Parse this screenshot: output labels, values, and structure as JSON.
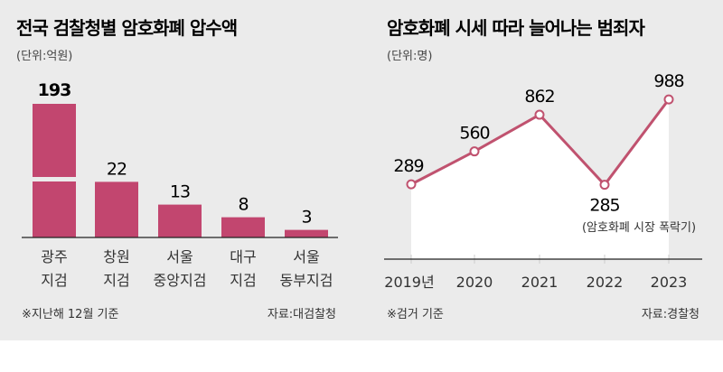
{
  "colors": {
    "bar": "#c2466f",
    "line": "#c0526f",
    "background": "#ebebeb",
    "area": "#ffffff"
  },
  "chart_data": [
    {
      "type": "bar",
      "title": "전국 검찰청별 암호화폐 압수액",
      "unit": "(단위:억원)",
      "categories": [
        [
          "광주",
          "지검"
        ],
        [
          "창원",
          "지검"
        ],
        [
          "서울",
          "중앙지검"
        ],
        [
          "대구",
          "지검"
        ],
        [
          "서울",
          "동부지검"
        ]
      ],
      "values": [
        193,
        22,
        13,
        8,
        3
      ],
      "value_labels": [
        "193",
        "22",
        "13",
        "8",
        "3"
      ],
      "axis_break_on_first_bar": true,
      "footnote": "※지난해 12월 기준",
      "source": "자료:대검찰청"
    },
    {
      "type": "line",
      "title": "암호화폐 시세 따라 늘어나는 범죄자",
      "unit": "(단위:명)",
      "x": [
        "2019년",
        "2020",
        "2021",
        "2022",
        "2023"
      ],
      "values": [
        289,
        560,
        862,
        285,
        988
      ],
      "value_labels": [
        "289",
        "560",
        "862",
        "285",
        "988"
      ],
      "annotation": "(암호화폐 시장 폭락기)",
      "annotation_for": "2022",
      "footnote": "※검거 기준",
      "source": "자료:경찰청"
    }
  ]
}
